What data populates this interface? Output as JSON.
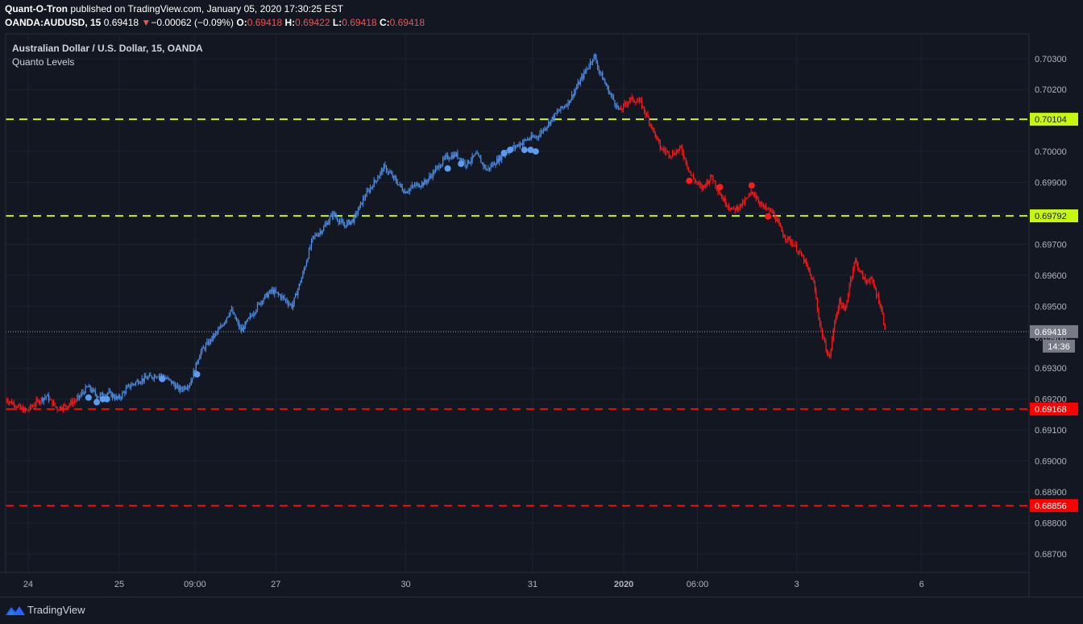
{
  "header": {
    "author": "Quant-O-Tron",
    "published_text": "published on TradingView.com, January 05, 2020 17:30:25 EST",
    "symbol": "OANDA:AUDUSD, 15",
    "last": "0.69418",
    "change_arrow": "▼",
    "change": "−0.00062 (−0.09%)",
    "o_label": "O:",
    "o_value": "0.69418",
    "h_label": "H:",
    "h_value": "0.69422",
    "l_label": "L:",
    "l_value": "0.69418",
    "c_label": "C:",
    "c_value": "0.69418"
  },
  "legend": {
    "title": "Australian Dollar / U.S. Dollar, 15, OANDA",
    "indicator": "Quanto Levels"
  },
  "footer": {
    "brand": "TradingView",
    "logo_icon": "tradingview-logo-icon"
  },
  "chart_data": {
    "type": "candlestick",
    "ylim": [
      0.6864,
      0.7038
    ],
    "y_ticks": [
      "0.70300",
      "0.70200",
      "0.70100",
      "0.70000",
      "0.69900",
      "0.69800",
      "0.69700",
      "0.69600",
      "0.69500",
      "0.69400",
      "0.69300",
      "0.69200",
      "0.69100",
      "0.69000",
      "0.68900",
      "0.68800",
      "0.68700"
    ],
    "x_ticks": [
      {
        "label": "24",
        "pos": 0.022
      },
      {
        "label": "25",
        "pos": 0.111
      },
      {
        "label": "09:00",
        "pos": 0.185
      },
      {
        "label": "27",
        "pos": 0.264
      },
      {
        "label": "30",
        "pos": 0.391
      },
      {
        "label": "31",
        "pos": 0.515
      },
      {
        "label": "2020",
        "pos": 0.604,
        "bold": true
      },
      {
        "label": "06:00",
        "pos": 0.676
      },
      {
        "label": "3",
        "pos": 0.773
      },
      {
        "label": "6",
        "pos": 0.895
      }
    ],
    "levels": [
      {
        "price": 0.70104,
        "label": "0.70104",
        "color": "#c6f70e",
        "label_text_color": "#131722"
      },
      {
        "price": 0.69792,
        "label": "0.69792",
        "color": "#c6f70e",
        "label_text_color": "#131722"
      },
      {
        "price": 0.69168,
        "label": "0.69168",
        "color": "#ff0000",
        "label_text_color": "#ffffff"
      },
      {
        "price": 0.68856,
        "label": "0.68856",
        "color": "#ff0000",
        "label_text_color": "#ffffff"
      }
    ],
    "last_price": {
      "price": 0.69418,
      "label": "0.69418",
      "countdown": "14:36"
    },
    "colors": {
      "up": "#4d8fe8",
      "down": "#ff1a1a",
      "grid": "#1e2230",
      "axis_text": "#b2b5be"
    },
    "price_path": [
      [
        0.0,
        0.692
      ],
      [
        0.01,
        0.6918
      ],
      [
        0.02,
        0.6916
      ],
      [
        0.03,
        0.6919
      ],
      [
        0.04,
        0.6921
      ],
      [
        0.05,
        0.6917
      ],
      [
        0.06,
        0.6918
      ],
      [
        0.07,
        0.692
      ],
      [
        0.08,
        0.6924
      ],
      [
        0.09,
        0.6921
      ],
      [
        0.1,
        0.6922
      ],
      [
        0.11,
        0.692
      ],
      [
        0.12,
        0.6924
      ],
      [
        0.13,
        0.6926
      ],
      [
        0.14,
        0.6927
      ],
      [
        0.15,
        0.6928
      ],
      [
        0.16,
        0.6926
      ],
      [
        0.17,
        0.6923
      ],
      [
        0.18,
        0.6925
      ],
      [
        0.19,
        0.6935
      ],
      [
        0.2,
        0.6939
      ],
      [
        0.21,
        0.6943
      ],
      [
        0.22,
        0.6949
      ],
      [
        0.23,
        0.6942
      ],
      [
        0.24,
        0.6947
      ],
      [
        0.25,
        0.6952
      ],
      [
        0.26,
        0.6955
      ],
      [
        0.27,
        0.6953
      ],
      [
        0.28,
        0.695
      ],
      [
        0.29,
        0.696
      ],
      [
        0.3,
        0.6972
      ],
      [
        0.31,
        0.6975
      ],
      [
        0.32,
        0.698
      ],
      [
        0.33,
        0.6976
      ],
      [
        0.34,
        0.6978
      ],
      [
        0.35,
        0.6985
      ],
      [
        0.36,
        0.699
      ],
      [
        0.37,
        0.6995
      ],
      [
        0.38,
        0.6991
      ],
      [
        0.39,
        0.6987
      ],
      [
        0.4,
        0.6989
      ],
      [
        0.41,
        0.699
      ],
      [
        0.42,
        0.6994
      ],
      [
        0.43,
        0.6998
      ],
      [
        0.44,
        0.6999
      ],
      [
        0.45,
        0.6996
      ],
      [
        0.46,
        0.6999
      ],
      [
        0.47,
        0.6994
      ],
      [
        0.48,
        0.6997
      ],
      [
        0.49,
        0.7
      ],
      [
        0.5,
        0.7002
      ],
      [
        0.51,
        0.7004
      ],
      [
        0.52,
        0.7005
      ],
      [
        0.53,
        0.7009
      ],
      [
        0.54,
        0.7013
      ],
      [
        0.55,
        0.7016
      ],
      [
        0.56,
        0.7022
      ],
      [
        0.57,
        0.7028
      ],
      [
        0.575,
        0.7031
      ],
      [
        0.58,
        0.7026
      ],
      [
        0.59,
        0.7019
      ],
      [
        0.6,
        0.7013
      ],
      [
        0.61,
        0.7017
      ],
      [
        0.62,
        0.7016
      ],
      [
        0.63,
        0.7009
      ],
      [
        0.64,
        0.7001
      ],
      [
        0.65,
        0.6999
      ],
      [
        0.66,
        0.7001
      ],
      [
        0.67,
        0.6992
      ],
      [
        0.68,
        0.6988
      ],
      [
        0.69,
        0.6992
      ],
      [
        0.7,
        0.6985
      ],
      [
        0.71,
        0.6981
      ],
      [
        0.72,
        0.6983
      ],
      [
        0.73,
        0.6987
      ],
      [
        0.74,
        0.6982
      ],
      [
        0.75,
        0.698
      ],
      [
        0.76,
        0.6973
      ],
      [
        0.77,
        0.697
      ],
      [
        0.78,
        0.6965
      ],
      [
        0.79,
        0.6957
      ],
      [
        0.795,
        0.6945
      ],
      [
        0.8,
        0.6938
      ],
      [
        0.805,
        0.6933
      ],
      [
        0.81,
        0.6945
      ],
      [
        0.815,
        0.6952
      ],
      [
        0.82,
        0.6948
      ],
      [
        0.825,
        0.6958
      ],
      [
        0.83,
        0.6965
      ],
      [
        0.835,
        0.6961
      ],
      [
        0.84,
        0.6958
      ],
      [
        0.845,
        0.6959
      ],
      [
        0.85,
        0.6955
      ],
      [
        0.855,
        0.695
      ],
      [
        0.86,
        0.6942
      ]
    ],
    "blue_dots": [
      [
        0.081,
        0.69205
      ],
      [
        0.089,
        0.6919
      ],
      [
        0.095,
        0.692
      ],
      [
        0.099,
        0.692
      ],
      [
        0.153,
        0.69265
      ],
      [
        0.187,
        0.6928
      ],
      [
        0.432,
        0.69945
      ],
      [
        0.445,
        0.6996
      ],
      [
        0.487,
        0.69995
      ],
      [
        0.493,
        0.70005
      ],
      [
        0.507,
        0.70005
      ],
      [
        0.513,
        0.70005
      ],
      [
        0.518,
        0.7
      ]
    ],
    "red_dots": [
      [
        0.668,
        0.69905
      ],
      [
        0.698,
        0.69885
      ],
      [
        0.729,
        0.6989
      ],
      [
        0.745,
        0.6979
      ]
    ]
  }
}
